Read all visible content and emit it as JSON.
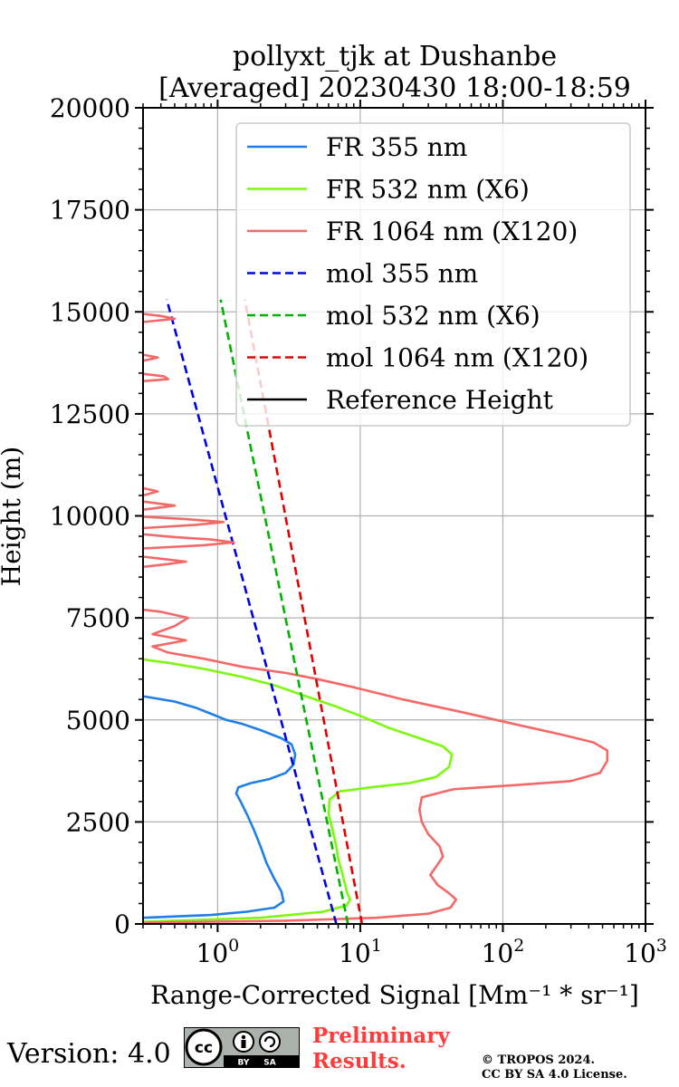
{
  "chart_data": {
    "type": "line",
    "title": "pollyxt_tjk at Dushanbe",
    "subtitle": "[Averaged] 20230430 18:00-18:59",
    "xlabel": "Range-Corrected Signal [Mm⁻¹ * sr⁻¹]",
    "ylabel": "Height (m)",
    "xscale": "log",
    "xlim": [
      0.3,
      1000
    ],
    "ylim": [
      0,
      20000
    ],
    "yticks": [
      "0",
      "2500",
      "5000",
      "7500",
      "10000",
      "12500",
      "15000",
      "17500",
      "20000"
    ],
    "xticks": [
      {
        "base": "10",
        "exp": "0"
      },
      {
        "base": "10",
        "exp": "1"
      },
      {
        "base": "10",
        "exp": "2"
      },
      {
        "base": "10",
        "exp": "3"
      }
    ],
    "grid": true,
    "legend_position": "top-right",
    "series": [
      {
        "name": "FR 355 nm",
        "color": "#1e7fe6",
        "style": "solid",
        "points": [
          [
            0.3,
            150
          ],
          [
            0.9,
            220
          ],
          [
            1.6,
            300
          ],
          [
            2.5,
            400
          ],
          [
            2.9,
            550
          ],
          [
            2.8,
            800
          ],
          [
            2.5,
            1100
          ],
          [
            2.2,
            1500
          ],
          [
            2.0,
            1900
          ],
          [
            1.8,
            2300
          ],
          [
            1.6,
            2700
          ],
          [
            1.45,
            3000
          ],
          [
            1.35,
            3200
          ],
          [
            1.4,
            3350
          ],
          [
            1.7,
            3450
          ],
          [
            2.3,
            3550
          ],
          [
            3.0,
            3700
          ],
          [
            3.4,
            3900
          ],
          [
            3.5,
            4150
          ],
          [
            3.3,
            4400
          ],
          [
            2.8,
            4550
          ],
          [
            2.0,
            4750
          ],
          [
            1.5,
            4900
          ],
          [
            1.15,
            5000
          ],
          [
            0.9,
            5150
          ],
          [
            0.7,
            5300
          ],
          [
            0.5,
            5450
          ],
          [
            0.3,
            5580
          ]
        ]
      },
      {
        "name": "FR 532 nm (X6)",
        "color": "#7cf80e",
        "style": "solid",
        "points": [
          [
            0.3,
            50
          ],
          [
            2.0,
            150
          ],
          [
            5.5,
            300
          ],
          [
            8.0,
            450
          ],
          [
            8.5,
            600
          ],
          [
            8.1,
            750
          ],
          [
            7.8,
            1000
          ],
          [
            7.4,
            1300
          ],
          [
            7.0,
            1600
          ],
          [
            6.8,
            1900
          ],
          [
            6.4,
            2300
          ],
          [
            6.0,
            2700
          ],
          [
            6.1,
            3050
          ],
          [
            7.2,
            3250
          ],
          [
            12,
            3350
          ],
          [
            22,
            3450
          ],
          [
            34,
            3600
          ],
          [
            42,
            3850
          ],
          [
            44,
            4150
          ],
          [
            38,
            4350
          ],
          [
            26,
            4550
          ],
          [
            16,
            4800
          ],
          [
            10,
            5100
          ],
          [
            6.5,
            5350
          ],
          [
            4.0,
            5600
          ],
          [
            2.5,
            5850
          ],
          [
            1.5,
            6050
          ],
          [
            0.8,
            6250
          ],
          [
            0.45,
            6400
          ],
          [
            0.3,
            6480
          ]
        ]
      },
      {
        "name": "FR 1064 nm (X120)",
        "color": "#f56868",
        "style": "solid",
        "points": [
          [
            0.3,
            30
          ],
          [
            3,
            80
          ],
          [
            13,
            150
          ],
          [
            30,
            250
          ],
          [
            43,
            400
          ],
          [
            47,
            600
          ],
          [
            42,
            750
          ],
          [
            35,
            950
          ],
          [
            31,
            1200
          ],
          [
            34,
            1400
          ],
          [
            38,
            1650
          ],
          [
            36,
            1900
          ],
          [
            30,
            2200
          ],
          [
            27,
            2500
          ],
          [
            26,
            2800
          ],
          [
            27,
            3100
          ],
          [
            45,
            3300
          ],
          [
            120,
            3400
          ],
          [
            300,
            3500
          ],
          [
            480,
            3700
          ],
          [
            540,
            4000
          ],
          [
            540,
            4250
          ],
          [
            430,
            4450
          ],
          [
            250,
            4650
          ],
          [
            120,
            4900
          ],
          [
            50,
            5200
          ],
          [
            20,
            5500
          ],
          [
            9,
            5800
          ],
          [
            5,
            6000
          ],
          [
            3,
            6150
          ],
          [
            1.5,
            6300
          ],
          [
            0.8,
            6500
          ],
          [
            0.45,
            6650
          ],
          [
            0.35,
            6800
          ],
          [
            0.6,
            6950
          ],
          [
            0.35,
            7100
          ],
          [
            0.5,
            7300
          ],
          [
            0.62,
            7500
          ],
          [
            0.4,
            7650
          ],
          [
            0.3,
            7700
          ]
        ]
      },
      {
        "name": "mol 355 nm",
        "color": "#0000e0",
        "style": "dashed",
        "points": [
          [
            6.8,
            0
          ],
          [
            0.44,
            15300
          ]
        ]
      },
      {
        "name": "mol 532 nm (X6)",
        "color": "#00b300",
        "style": "dashed",
        "points": [
          [
            8.2,
            0
          ],
          [
            1.05,
            15300
          ]
        ]
      },
      {
        "name": "mol 1064 nm (X120)",
        "color": "#e00000",
        "style": "dashed",
        "points": [
          [
            10.3,
            0
          ],
          [
            1.55,
            15300
          ]
        ]
      },
      {
        "name": "Reference Height",
        "color": "#000000",
        "style": "solid",
        "points": []
      }
    ],
    "noise_1064": [
      [
        [
          0.3,
          8750
        ],
        [
          0.45,
          8820
        ],
        [
          0.6,
          8880
        ],
        [
          0.4,
          8950
        ],
        [
          0.3,
          9000
        ]
      ],
      [
        [
          0.3,
          9200
        ],
        [
          0.8,
          9280
        ],
        [
          1.3,
          9350
        ],
        [
          0.9,
          9420
        ],
        [
          0.5,
          9480
        ],
        [
          0.3,
          9550
        ]
      ],
      [
        [
          0.3,
          9700
        ],
        [
          0.7,
          9780
        ],
        [
          1.1,
          9850
        ],
        [
          0.6,
          9920
        ],
        [
          0.3,
          9980
        ]
      ],
      [
        [
          0.3,
          10150
        ],
        [
          0.5,
          10250
        ],
        [
          0.3,
          10350
        ]
      ],
      [
        [
          0.3,
          10500
        ],
        [
          0.38,
          10600
        ],
        [
          0.3,
          10680
        ]
      ],
      [
        [
          0.3,
          13300
        ],
        [
          0.45,
          13350
        ],
        [
          0.42,
          13420
        ],
        [
          0.3,
          13480
        ]
      ],
      [
        [
          0.3,
          13800
        ],
        [
          0.38,
          13880
        ],
        [
          0.3,
          13950
        ]
      ],
      [
        [
          0.3,
          14750
        ],
        [
          0.5,
          14830
        ],
        [
          0.4,
          14900
        ],
        [
          0.3,
          14950
        ]
      ]
    ]
  },
  "footer": {
    "version": "Version: 4.0",
    "cc_left": "cc",
    "cc_by": "BY",
    "cc_sa": "SA",
    "preliminary_line1": "Preliminary",
    "preliminary_line2": "Results.",
    "copyright_line1": "© TROPOS 2024.",
    "copyright_line2": "CC BY SA 4.0 License."
  }
}
